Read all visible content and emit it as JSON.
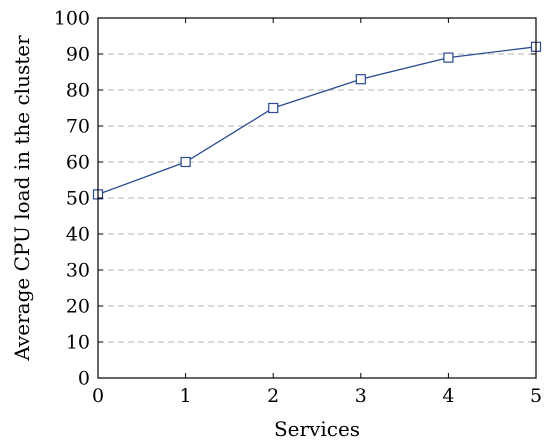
{
  "chart_data": {
    "type": "line",
    "title": "",
    "xlabel": "Services",
    "ylabel": "Average CPU load in the cluster",
    "x": [
      0,
      1,
      2,
      3,
      4,
      5
    ],
    "series": [
      {
        "values": [
          51,
          60,
          75,
          83,
          89,
          92
        ],
        "color": "#2b4a8f",
        "marker": "square"
      }
    ],
    "xlim": [
      0,
      5
    ],
    "ylim": [
      0,
      100
    ],
    "xticks": [
      0,
      1,
      2,
      3,
      4,
      5
    ],
    "yticks": [
      0,
      10,
      20,
      30,
      40,
      50,
      60,
      70,
      80,
      90,
      100
    ],
    "grid": "horizontal-dashed",
    "legend": "none"
  }
}
